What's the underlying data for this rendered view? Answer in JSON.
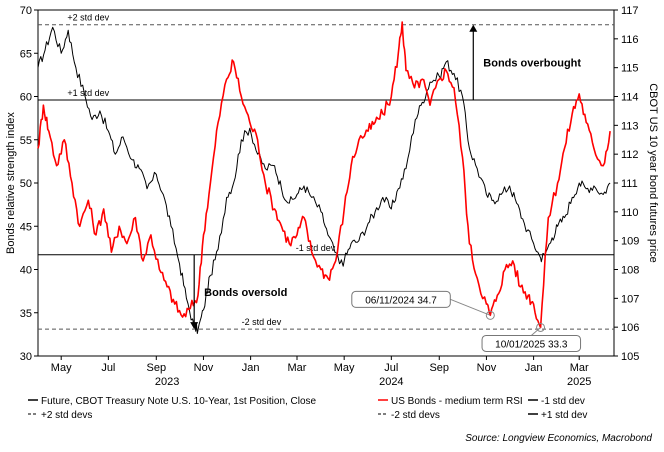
{
  "chart_data": {
    "type": "line",
    "left_axis": {
      "label": "Bonds relative strength index",
      "range": [
        30,
        70
      ],
      "ticks": [
        30,
        35,
        40,
        45,
        50,
        55,
        60,
        65,
        70
      ]
    },
    "right_axis": {
      "label": "CBOT US 10 year bond futures price",
      "range": [
        105,
        117
      ],
      "ticks": [
        105,
        106,
        107,
        108,
        109,
        110,
        111,
        112,
        113,
        114,
        115,
        116,
        117
      ]
    },
    "x_axis": {
      "range": [
        "2023-04-01",
        "2025-04-15"
      ],
      "month_ticks": [
        {
          "label": "May",
          "date": "2023-05-01"
        },
        {
          "label": "Jul",
          "date": "2023-07-01"
        },
        {
          "label": "Sep",
          "date": "2023-09-01"
        },
        {
          "label": "Nov",
          "date": "2023-11-01"
        },
        {
          "label": "Jan",
          "date": "2024-01-01"
        },
        {
          "label": "Mar",
          "date": "2024-03-01"
        },
        {
          "label": "May",
          "date": "2024-05-01"
        },
        {
          "label": "Jul",
          "date": "2024-07-01"
        },
        {
          "label": "Sep",
          "date": "2024-09-01"
        },
        {
          "label": "Nov",
          "date": "2024-11-01"
        },
        {
          "label": "Jan",
          "date": "2025-01-01"
        },
        {
          "label": "Mar",
          "date": "2025-03-01"
        }
      ],
      "year_labels": [
        {
          "label": "2023",
          "date": "2023-09-15"
        },
        {
          "label": "2024",
          "date": "2024-07-01"
        },
        {
          "label": "2025",
          "date": "2025-03-01"
        }
      ]
    },
    "reference_lines": [
      {
        "name": "+2 std dev",
        "value": 68.3,
        "style": "dashed"
      },
      {
        "name": "+1 std dev",
        "value": 59.6,
        "style": "solid"
      },
      {
        "name": "-1 std dev",
        "value": 41.7,
        "style": "solid"
      },
      {
        "name": "-2 std dev",
        "value": 33.1,
        "style": "dashed"
      }
    ],
    "series": [
      {
        "name": "Future, CBOT Treasury Note U.S. 10-Year, 1st Position, Close",
        "axis": "right",
        "color": "#000000",
        "points": [
          [
            "2023-04-01",
            115.0
          ],
          [
            "2023-04-10",
            115.6
          ],
          [
            "2023-04-20",
            116.4
          ],
          [
            "2023-05-01",
            115.5
          ],
          [
            "2023-05-10",
            116.3
          ],
          [
            "2023-05-20",
            115.0
          ],
          [
            "2023-05-31",
            114.1
          ],
          [
            "2023-06-10",
            113.2
          ],
          [
            "2023-06-20",
            113.5
          ],
          [
            "2023-07-01",
            112.8
          ],
          [
            "2023-07-10",
            112.0
          ],
          [
            "2023-07-20",
            112.6
          ],
          [
            "2023-08-01",
            111.8
          ],
          [
            "2023-08-10",
            111.5
          ],
          [
            "2023-08-20",
            110.8
          ],
          [
            "2023-09-01",
            111.3
          ],
          [
            "2023-09-10",
            110.6
          ],
          [
            "2023-09-20",
            109.5
          ],
          [
            "2023-10-01",
            108.2
          ],
          [
            "2023-10-10",
            107.0
          ],
          [
            "2023-10-20",
            106.0
          ],
          [
            "2023-10-25",
            105.9
          ],
          [
            "2023-11-01",
            106.6
          ],
          [
            "2023-11-10",
            107.8
          ],
          [
            "2023-11-20",
            108.7
          ],
          [
            "2023-12-01",
            110.5
          ],
          [
            "2023-12-10",
            111.0
          ],
          [
            "2023-12-20",
            112.5
          ],
          [
            "2023-12-31",
            112.9
          ],
          [
            "2024-01-10",
            112.0
          ],
          [
            "2024-01-20",
            111.5
          ],
          [
            "2024-02-01",
            111.6
          ],
          [
            "2024-02-10",
            110.8
          ],
          [
            "2024-02-20",
            110.3
          ],
          [
            "2024-03-01",
            110.6
          ],
          [
            "2024-03-10",
            110.9
          ],
          [
            "2024-03-20",
            110.5
          ],
          [
            "2024-04-01",
            110.0
          ],
          [
            "2024-04-10",
            109.2
          ],
          [
            "2024-04-25",
            108.2
          ],
          [
            "2024-05-01",
            108.3
          ],
          [
            "2024-05-10",
            108.9
          ],
          [
            "2024-05-20",
            109.0
          ],
          [
            "2024-06-01",
            109.6
          ],
          [
            "2024-06-10",
            110.0
          ],
          [
            "2024-06-20",
            110.5
          ],
          [
            "2024-07-01",
            110.1
          ],
          [
            "2024-07-10",
            110.8
          ],
          [
            "2024-07-20",
            111.5
          ],
          [
            "2024-08-01",
            113.2
          ],
          [
            "2024-08-10",
            113.8
          ],
          [
            "2024-08-20",
            114.5
          ],
          [
            "2024-09-01",
            114.7
          ],
          [
            "2024-09-10",
            115.2
          ],
          [
            "2024-09-20",
            114.8
          ],
          [
            "2024-10-01",
            114.0
          ],
          [
            "2024-10-10",
            112.2
          ],
          [
            "2024-10-20",
            111.5
          ],
          [
            "2024-11-01",
            110.6
          ],
          [
            "2024-11-10",
            110.4
          ],
          [
            "2024-11-20",
            110.6
          ],
          [
            "2024-12-01",
            110.9
          ],
          [
            "2024-12-10",
            110.3
          ],
          [
            "2024-12-20",
            109.6
          ],
          [
            "2025-01-01",
            108.9
          ],
          [
            "2025-01-10",
            108.4
          ],
          [
            "2025-01-15",
            108.5
          ],
          [
            "2025-01-25",
            109.1
          ],
          [
            "2025-02-01",
            109.5
          ],
          [
            "2025-02-10",
            109.8
          ],
          [
            "2025-02-20",
            110.5
          ],
          [
            "2025-03-01",
            111.0
          ],
          [
            "2025-03-10",
            110.8
          ],
          [
            "2025-03-20",
            110.9
          ],
          [
            "2025-04-01",
            110.6
          ],
          [
            "2025-04-10",
            111.0
          ]
        ]
      },
      {
        "name": "US Bonds - medium term RSI",
        "axis": "left",
        "color": "#ff0000",
        "points": [
          [
            "2023-04-01",
            54
          ],
          [
            "2023-04-08",
            59
          ],
          [
            "2023-04-15",
            56
          ],
          [
            "2023-04-25",
            52
          ],
          [
            "2023-05-05",
            55
          ],
          [
            "2023-05-15",
            50
          ],
          [
            "2023-05-25",
            45
          ],
          [
            "2023-06-05",
            48
          ],
          [
            "2023-06-15",
            44
          ],
          [
            "2023-06-25",
            47
          ],
          [
            "2023-07-05",
            42
          ],
          [
            "2023-07-15",
            45
          ],
          [
            "2023-07-25",
            43
          ],
          [
            "2023-08-05",
            46
          ],
          [
            "2023-08-15",
            41
          ],
          [
            "2023-08-25",
            44
          ],
          [
            "2023-09-05",
            40
          ],
          [
            "2023-09-15",
            38
          ],
          [
            "2023-09-25",
            36
          ],
          [
            "2023-10-05",
            34.5
          ],
          [
            "2023-10-15",
            35.5
          ],
          [
            "2023-10-25",
            37
          ],
          [
            "2023-11-01",
            44
          ],
          [
            "2023-11-10",
            50
          ],
          [
            "2023-11-20",
            57
          ],
          [
            "2023-12-01",
            62
          ],
          [
            "2023-12-10",
            64
          ],
          [
            "2023-12-20",
            60
          ],
          [
            "2023-12-31",
            57
          ],
          [
            "2024-01-10",
            55
          ],
          [
            "2024-01-20",
            50
          ],
          [
            "2024-02-01",
            47
          ],
          [
            "2024-02-10",
            45
          ],
          [
            "2024-02-20",
            43
          ],
          [
            "2024-03-01",
            44
          ],
          [
            "2024-03-10",
            46
          ],
          [
            "2024-03-20",
            42
          ],
          [
            "2024-04-01",
            40
          ],
          [
            "2024-04-10",
            39
          ],
          [
            "2024-04-20",
            41
          ],
          [
            "2024-05-01",
            47
          ],
          [
            "2024-05-10",
            52
          ],
          [
            "2024-05-20",
            55
          ],
          [
            "2024-06-01",
            56
          ],
          [
            "2024-06-10",
            57
          ],
          [
            "2024-06-20",
            58
          ],
          [
            "2024-07-01",
            60
          ],
          [
            "2024-07-10",
            65
          ],
          [
            "2024-07-15",
            68.6
          ],
          [
            "2024-07-20",
            63
          ],
          [
            "2024-07-31",
            61
          ],
          [
            "2024-08-10",
            62
          ],
          [
            "2024-08-20",
            59
          ],
          [
            "2024-09-01",
            62
          ],
          [
            "2024-09-10",
            63
          ],
          [
            "2024-09-20",
            61
          ],
          [
            "2024-10-01",
            53
          ],
          [
            "2024-10-10",
            43
          ],
          [
            "2024-10-20",
            39
          ],
          [
            "2024-11-01",
            36
          ],
          [
            "2024-11-06",
            34.7
          ],
          [
            "2024-11-15",
            37
          ],
          [
            "2024-11-25",
            40
          ],
          [
            "2024-12-05",
            41
          ],
          [
            "2024-12-15",
            38
          ],
          [
            "2024-12-25",
            37
          ],
          [
            "2025-01-01",
            36
          ],
          [
            "2025-01-10",
            33.3
          ],
          [
            "2025-01-20",
            46
          ],
          [
            "2025-02-01",
            50
          ],
          [
            "2025-02-10",
            54
          ],
          [
            "2025-02-20",
            58
          ],
          [
            "2025-03-01",
            60.3
          ],
          [
            "2025-03-10",
            57
          ],
          [
            "2025-03-20",
            54
          ],
          [
            "2025-04-01",
            52
          ],
          [
            "2025-04-10",
            56
          ]
        ]
      }
    ],
    "annotations": [
      {
        "text": "Bonds overbought",
        "arrow": "up",
        "date": "2024-10-15",
        "from": 59.6,
        "to": 68.3
      },
      {
        "text": "Bonds oversold",
        "arrow": "down",
        "date": "2023-10-20",
        "from": 41.7,
        "to": 33.1
      },
      {
        "text": "06/11/2024 34.7",
        "point_date": "2024-11-06",
        "point_value": 34.7
      },
      {
        "text": "10/01/2025 33.3",
        "point_date": "2025-01-10",
        "point_value": 33.3
      }
    ],
    "legend": {
      "placement": "bottom",
      "entries": [
        {
          "label": "Future, CBOT Treasury Note U.S. 10-Year, 1st Position, Close",
          "color": "#000000",
          "style": "solid"
        },
        {
          "label": "US Bonds - medium term RSI",
          "color": "#ff0000",
          "style": "solid"
        },
        {
          "label": "-1 std dev",
          "color": "#000000",
          "style": "solid"
        },
        {
          "label": "+2 std devs",
          "color": "#555555",
          "style": "dashed"
        },
        {
          "label": "-2 std devs",
          "color": "#555555",
          "style": "dashed"
        },
        {
          "label": "+1 std dev",
          "color": "#000000",
          "style": "solid"
        }
      ]
    },
    "source": "Source: Longview Economics, Macrobond",
    "grid": false
  }
}
